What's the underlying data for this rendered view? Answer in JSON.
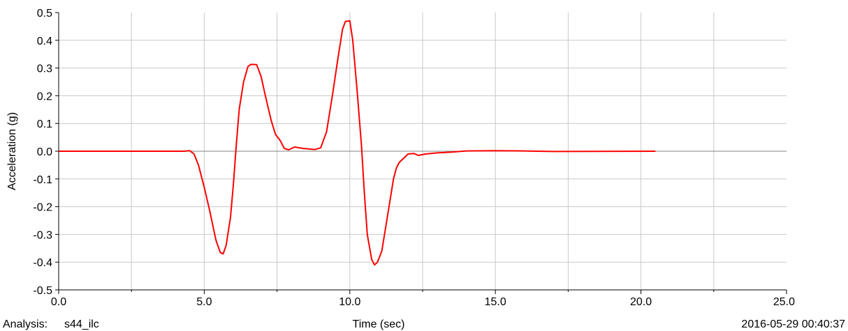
{
  "footer": {
    "analysis_label": "Analysis:",
    "analysis_value": "s44_ilc",
    "timestamp": "2016-05-29 00:40:37"
  },
  "chart_data": {
    "type": "line",
    "title": "",
    "xlabel": "Time (sec)",
    "ylabel": "Acceleration (g)",
    "xlim": [
      0,
      25
    ],
    "ylim": [
      -0.5,
      0.5
    ],
    "grid": true,
    "x_ticks": [
      0,
      5,
      10,
      15,
      20,
      25
    ],
    "x_tick_labels": [
      "0.0",
      "5.0",
      "10.0",
      "15.0",
      "20.0",
      "25.0"
    ],
    "x_minor_ticks": [
      2.5,
      7.5,
      12.5,
      17.5,
      22.5
    ],
    "y_ticks": [
      -0.5,
      -0.4,
      -0.3,
      -0.2,
      -0.1,
      0,
      0.1,
      0.2,
      0.3,
      0.4,
      0.5
    ],
    "y_tick_labels": [
      "-0.5",
      "-0.4",
      "-0.3",
      "-0.2",
      "-0.1",
      "0.0",
      "0.1",
      "0.2",
      "0.3",
      "0.4",
      "0.5"
    ],
    "colors": {
      "series": "#ff0000",
      "grid": "#c8c8c8",
      "zero_line": "#808080",
      "axis": "#000000"
    },
    "series": [
      {
        "points": [
          [
            0,
            0
          ],
          [
            4.3,
            0
          ],
          [
            4.5,
            0.002
          ],
          [
            4.65,
            -0.01
          ],
          [
            4.8,
            -0.05
          ],
          [
            5.0,
            -0.13
          ],
          [
            5.2,
            -0.22
          ],
          [
            5.4,
            -0.32
          ],
          [
            5.55,
            -0.365
          ],
          [
            5.65,
            -0.37
          ],
          [
            5.75,
            -0.34
          ],
          [
            5.9,
            -0.24
          ],
          [
            6.0,
            -0.12
          ],
          [
            6.1,
            0.02
          ],
          [
            6.2,
            0.15
          ],
          [
            6.35,
            0.25
          ],
          [
            6.5,
            0.305
          ],
          [
            6.6,
            0.313
          ],
          [
            6.8,
            0.312
          ],
          [
            6.95,
            0.27
          ],
          [
            7.1,
            0.2
          ],
          [
            7.3,
            0.11
          ],
          [
            7.45,
            0.06
          ],
          [
            7.6,
            0.04
          ],
          [
            7.75,
            0.01
          ],
          [
            7.9,
            0.005
          ],
          [
            8.1,
            0.015
          ],
          [
            8.4,
            0.01
          ],
          [
            8.8,
            0.006
          ],
          [
            9.0,
            0.012
          ],
          [
            9.2,
            0.07
          ],
          [
            9.4,
            0.2
          ],
          [
            9.6,
            0.34
          ],
          [
            9.75,
            0.44
          ],
          [
            9.85,
            0.468
          ],
          [
            10.0,
            0.47
          ],
          [
            10.1,
            0.4
          ],
          [
            10.25,
            0.22
          ],
          [
            10.4,
            0.02
          ],
          [
            10.5,
            -0.15
          ],
          [
            10.6,
            -0.3
          ],
          [
            10.75,
            -0.39
          ],
          [
            10.85,
            -0.41
          ],
          [
            10.95,
            -0.4
          ],
          [
            11.1,
            -0.36
          ],
          [
            11.3,
            -0.23
          ],
          [
            11.5,
            -0.1
          ],
          [
            11.6,
            -0.06
          ],
          [
            11.7,
            -0.04
          ],
          [
            11.85,
            -0.025
          ],
          [
            12.0,
            -0.01
          ],
          [
            12.2,
            -0.008
          ],
          [
            12.35,
            -0.015
          ],
          [
            12.6,
            -0.01
          ],
          [
            13.0,
            -0.006
          ],
          [
            13.5,
            -0.003
          ],
          [
            14.0,
            0.001
          ],
          [
            15.0,
            0.002
          ],
          [
            16.0,
            0.001
          ],
          [
            17.0,
            -0.001
          ],
          [
            20.5,
            0
          ]
        ]
      }
    ]
  }
}
